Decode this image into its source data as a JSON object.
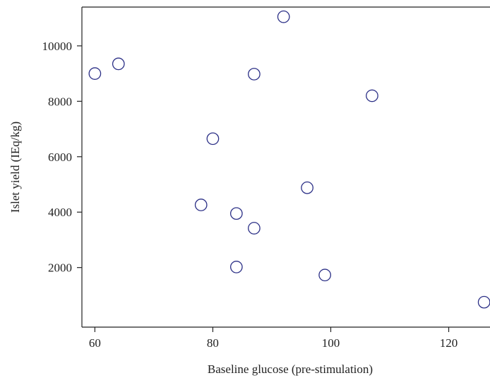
{
  "chart_data": {
    "type": "scatter",
    "title": "",
    "xlabel": "Baseline glucose (pre-stimulation)",
    "ylabel": "Islet yield (IEq/kg)",
    "xlim": [
      57.8,
      127
    ],
    "ylim": [
      -150,
      11400
    ],
    "xticks": [
      "60",
      "80",
      "100",
      "120"
    ],
    "yticks": [
      "2000",
      "4000",
      "6000",
      "8000",
      "10000"
    ],
    "xtick_values": [
      60,
      80,
      100,
      120
    ],
    "ytick_values": [
      2000,
      4000,
      6000,
      8000,
      10000
    ],
    "grid": false,
    "legend": false,
    "marker": "open-circle",
    "marker_color": "#2b2f86",
    "axis_color": "#222222",
    "series": [
      {
        "x": [
          60,
          64,
          87,
          92,
          107,
          80,
          96,
          78,
          84,
          87,
          84,
          99,
          126
        ],
        "y": [
          9000,
          9350,
          8980,
          11050,
          8200,
          6650,
          4880,
          4260,
          3950,
          3420,
          2020,
          1730,
          750
        ]
      }
    ]
  }
}
